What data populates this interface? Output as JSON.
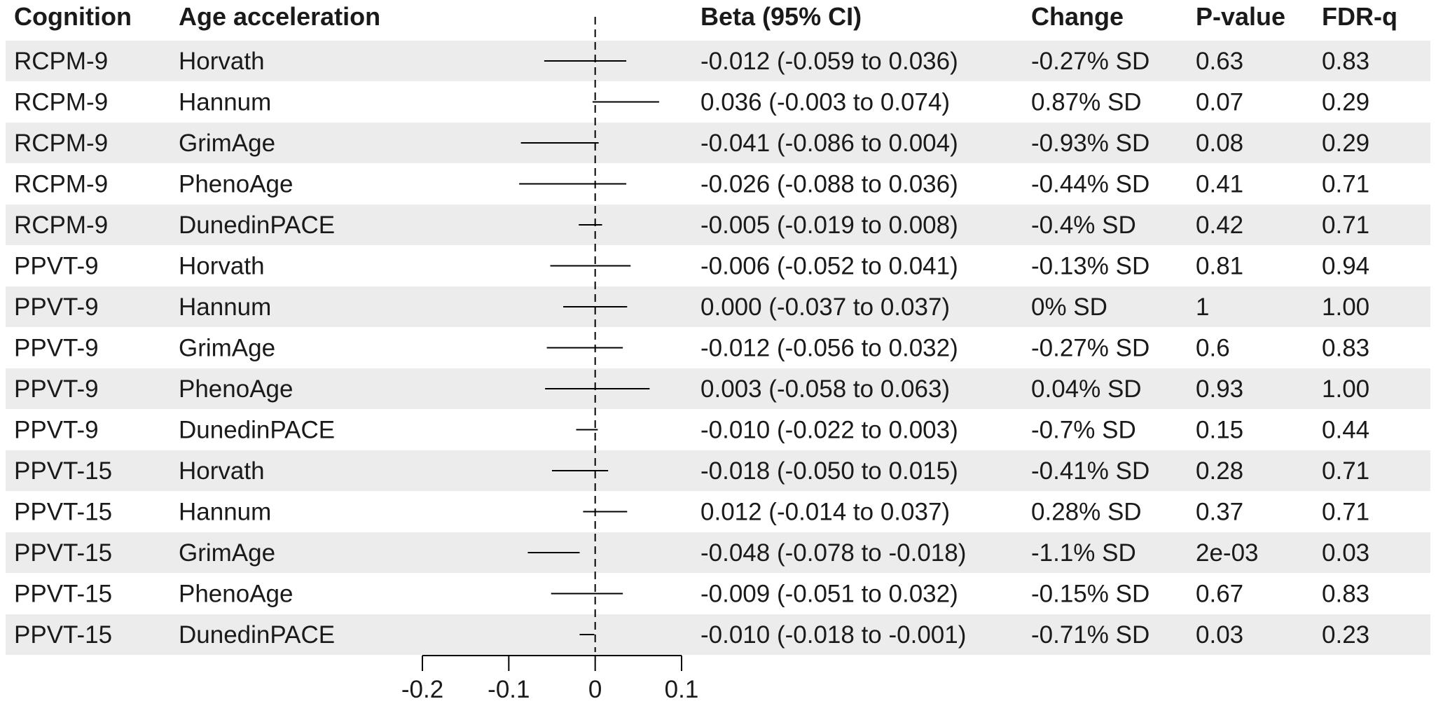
{
  "colors": {
    "stripe": "#ececec",
    "text": "#1a1a1a",
    "line": "#000000"
  },
  "headers": {
    "cognition": "Cognition",
    "age_acceleration": "Age acceleration",
    "beta": "Beta (95% CI)",
    "change": "Change",
    "p_value": "P-value",
    "fdr_q": "FDR-q"
  },
  "chart_data": {
    "type": "forest",
    "title": "",
    "xlabel": "",
    "xlim": [
      -0.2,
      0.1
    ],
    "x_ticks": [
      -0.2,
      -0.1,
      0,
      0.1
    ],
    "x_tick_labels": [
      "-0.2",
      "-0.1",
      "0",
      "0.1"
    ],
    "reference_line": 0,
    "rows": [
      {
        "cognition": "RCPM-9",
        "age": "Horvath",
        "beta": -0.012,
        "lower": -0.059,
        "upper": 0.036,
        "beta_text": "-0.012 (-0.059 to 0.036)",
        "change": "-0.27% SD",
        "p": "0.63",
        "q": "0.83"
      },
      {
        "cognition": "RCPM-9",
        "age": "Hannum",
        "beta": 0.036,
        "lower": -0.003,
        "upper": 0.074,
        "beta_text": "0.036 (-0.003 to 0.074)",
        "change": "0.87% SD",
        "p": "0.07",
        "q": "0.29"
      },
      {
        "cognition": "RCPM-9",
        "age": "GrimAge",
        "beta": -0.041,
        "lower": -0.086,
        "upper": 0.004,
        "beta_text": "-0.041 (-0.086 to 0.004)",
        "change": "-0.93% SD",
        "p": "0.08",
        "q": "0.29"
      },
      {
        "cognition": "RCPM-9",
        "age": "PhenoAge",
        "beta": -0.026,
        "lower": -0.088,
        "upper": 0.036,
        "beta_text": "-0.026 (-0.088 to 0.036)",
        "change": "-0.44% SD",
        "p": "0.41",
        "q": "0.71"
      },
      {
        "cognition": "RCPM-9",
        "age": "DunedinPACE",
        "beta": -0.005,
        "lower": -0.019,
        "upper": 0.008,
        "beta_text": "-0.005 (-0.019 to 0.008)",
        "change": "-0.4% SD",
        "p": "0.42",
        "q": "0.71"
      },
      {
        "cognition": "PPVT-9",
        "age": "Horvath",
        "beta": -0.006,
        "lower": -0.052,
        "upper": 0.041,
        "beta_text": "-0.006 (-0.052 to 0.041)",
        "change": "-0.13% SD",
        "p": "0.81",
        "q": "0.94"
      },
      {
        "cognition": "PPVT-9",
        "age": "Hannum",
        "beta": 0.0,
        "lower": -0.037,
        "upper": 0.037,
        "beta_text": "0.000 (-0.037 to 0.037)",
        "change": "0% SD",
        "p": "1",
        "q": "1.00"
      },
      {
        "cognition": "PPVT-9",
        "age": "GrimAge",
        "beta": -0.012,
        "lower": -0.056,
        "upper": 0.032,
        "beta_text": "-0.012 (-0.056 to 0.032)",
        "change": "-0.27% SD",
        "p": "0.6",
        "q": "0.83"
      },
      {
        "cognition": "PPVT-9",
        "age": "PhenoAge",
        "beta": 0.003,
        "lower": -0.058,
        "upper": 0.063,
        "beta_text": "0.003 (-0.058 to 0.063)",
        "change": "0.04% SD",
        "p": "0.93",
        "q": "1.00"
      },
      {
        "cognition": "PPVT-9",
        "age": "DunedinPACE",
        "beta": -0.01,
        "lower": -0.022,
        "upper": 0.003,
        "beta_text": "-0.010 (-0.022 to 0.003)",
        "change": "-0.7% SD",
        "p": "0.15",
        "q": "0.44"
      },
      {
        "cognition": "PPVT-15",
        "age": "Horvath",
        "beta": -0.018,
        "lower": -0.05,
        "upper": 0.015,
        "beta_text": "-0.018 (-0.050 to 0.015)",
        "change": "-0.41% SD",
        "p": "0.28",
        "q": "0.71"
      },
      {
        "cognition": "PPVT-15",
        "age": "Hannum",
        "beta": 0.012,
        "lower": -0.014,
        "upper": 0.037,
        "beta_text": "0.012 (-0.014 to 0.037)",
        "change": "0.28% SD",
        "p": "0.37",
        "q": "0.71"
      },
      {
        "cognition": "PPVT-15",
        "age": "GrimAge",
        "beta": -0.048,
        "lower": -0.078,
        "upper": -0.018,
        "beta_text": "-0.048 (-0.078 to -0.018)",
        "change": "-1.1% SD",
        "p": "2e-03",
        "q": "0.03"
      },
      {
        "cognition": "PPVT-15",
        "age": "PhenoAge",
        "beta": -0.009,
        "lower": -0.051,
        "upper": 0.032,
        "beta_text": "-0.009 (-0.051 to 0.032)",
        "change": "-0.15% SD",
        "p": "0.67",
        "q": "0.83"
      },
      {
        "cognition": "PPVT-15",
        "age": "DunedinPACE",
        "beta": -0.01,
        "lower": -0.018,
        "upper": -0.001,
        "beta_text": "-0.010 (-0.018 to -0.001)",
        "change": "-0.71% SD",
        "p": "0.03",
        "q": "0.23"
      }
    ]
  }
}
